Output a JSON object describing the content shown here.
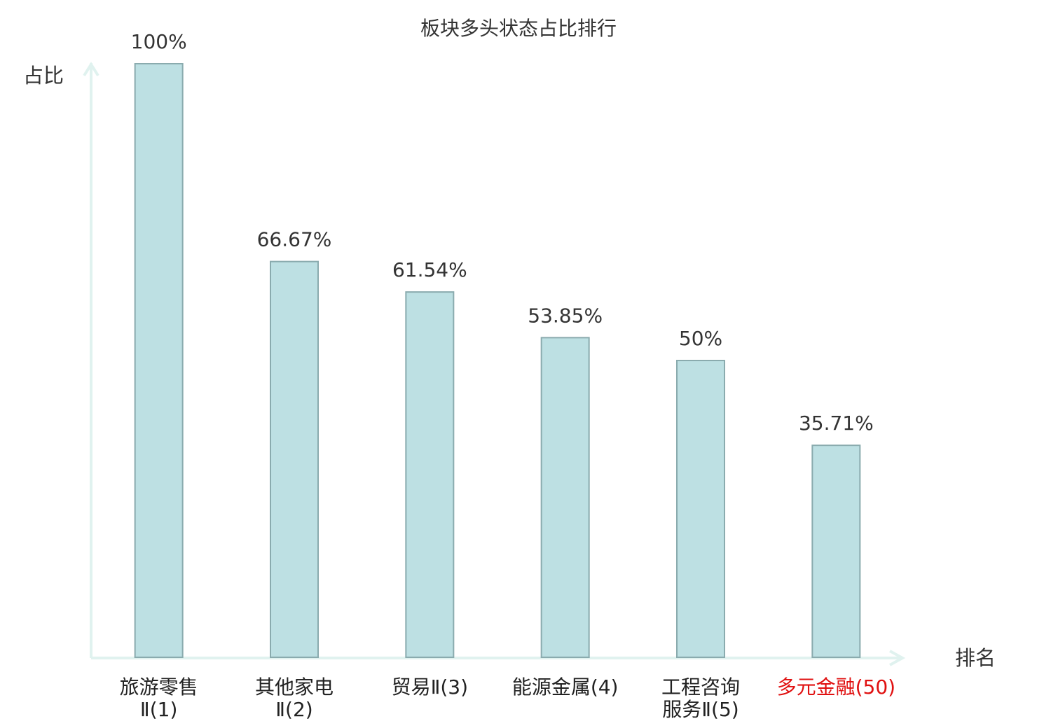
{
  "chart_data": {
    "type": "bar",
    "title": "板块多头状态占比排行",
    "y_label": "占比",
    "x_label": "排名",
    "categories": [
      "旅游零售\nⅡ(1)",
      "其他家电\nⅡ(2)",
      "贸易Ⅱ(3)",
      "能源金属(4)",
      "工程咨询\n服务Ⅱ(5)",
      "多元金融(50)"
    ],
    "category_colors": [
      "#222222",
      "#222222",
      "#222222",
      "#222222",
      "#222222",
      "#e01010"
    ],
    "values": [
      100,
      66.67,
      61.54,
      53.85,
      50,
      35.71
    ],
    "value_labels": [
      "100%",
      "66.67%",
      "61.54%",
      "53.85%",
      "50%",
      "35.71%"
    ],
    "color": "#bde0e3",
    "edge_color": "#8aabae",
    "ylim": [
      0,
      100
    ]
  }
}
